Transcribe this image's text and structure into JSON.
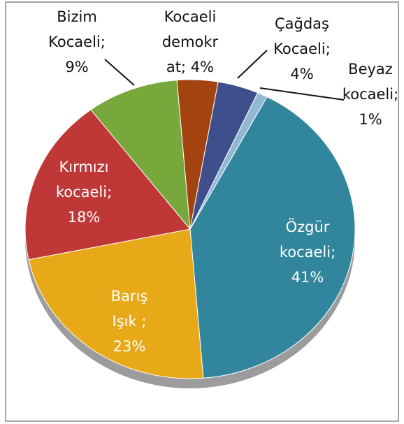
{
  "chart_data": {
    "type": "pie",
    "values": [
      41,
      23,
      18,
      9,
      4,
      4,
      1
    ],
    "value_labels": [
      [
        "Özgür",
        "kocaeli;",
        "41%"
      ],
      [
        "Barış",
        "Işık ;",
        "23%"
      ],
      [
        "Kırmızı",
        "kocaeli;",
        "18%"
      ],
      [
        "Bizim",
        "Kocaeli;",
        "9%"
      ],
      [
        "Kocaeli",
        "demokr",
        "at; 4%"
      ],
      [
        "Çağdaş",
        "Kocaeli;",
        "4%"
      ],
      [
        "Beyaz",
        "kocaeli;",
        "1%"
      ]
    ],
    "colors": [
      "#31869d",
      "#e8a918",
      "#bf3737",
      "#78a83c",
      "#a3430f",
      "#3f4f8c",
      "#93b8d4"
    ]
  }
}
